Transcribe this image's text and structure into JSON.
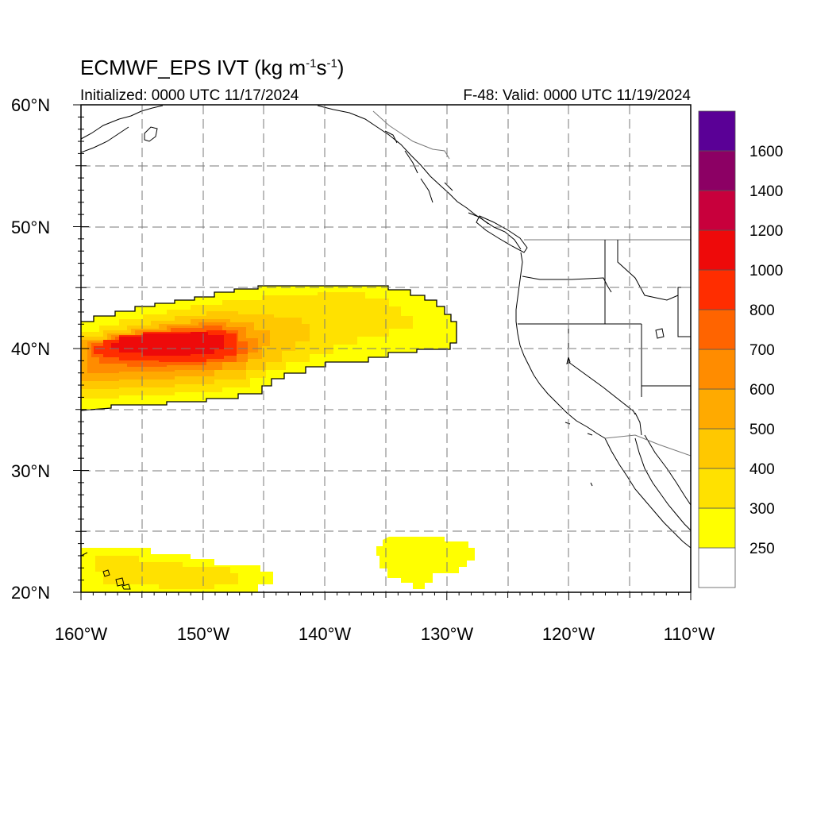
{
  "header": {
    "title_main": "ECMWF_EPS IVT (kg m",
    "title_exp1": "-1",
    "title_mid": "s",
    "title_exp2": "-1",
    "title_end": ")",
    "initialized": "Initialized: 0000 UTC 11/17/2024",
    "valid": "F-48: Valid: 0000 UTC 11/19/2024"
  },
  "map": {
    "lon_range": [
      -160,
      -110
    ],
    "lat_range": [
      20,
      60
    ],
    "lon_labels": [
      "160°W",
      "150°W",
      "140°W",
      "130°W",
      "120°W",
      "110°W"
    ],
    "lat_labels": [
      "20°N",
      "30°N",
      "40°N",
      "50°N"
    ],
    "lat_label_top": "60°N",
    "grid": "dashed every 5°",
    "coast_color": "#000000",
    "border_color": "#000000"
  },
  "colorbar": {
    "levels": [
      250,
      300,
      400,
      500,
      600,
      700,
      800,
      1000,
      1200,
      1400,
      1600
    ],
    "labels": [
      "250",
      "300",
      "400",
      "500",
      "600",
      "700",
      "800",
      "1000",
      "1200",
      "1400",
      "1600"
    ],
    "colors": [
      "#ffffff",
      "#ffff00",
      "#ffe100",
      "#ffc800",
      "#ffaa00",
      "#ff8c00",
      "#ff6400",
      "#ff2d00",
      "#ee0a0a",
      "#c8003c",
      "#8c0064",
      "#5a0096"
    ]
  }
}
